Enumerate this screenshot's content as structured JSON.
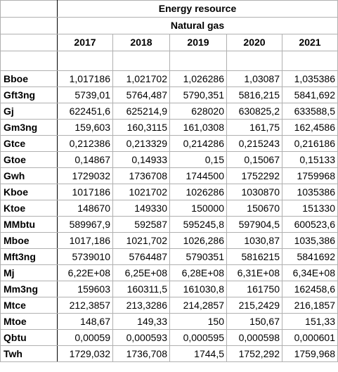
{
  "header": {
    "group_title": "Energy resource",
    "sub_title": "Natural gas",
    "years": [
      "2017",
      "2018",
      "2019",
      "2020",
      "2021"
    ]
  },
  "rows": [
    {
      "unit": "Bboe",
      "values": [
        "1,017186",
        "1,021702",
        "1,026286",
        "1,03087",
        "1,035386"
      ]
    },
    {
      "unit": "Gft3ng",
      "values": [
        "5739,01",
        "5764,487",
        "5790,351",
        "5816,215",
        "5841,692"
      ]
    },
    {
      "unit": "Gj",
      "values": [
        "622451,6",
        "625214,9",
        "628020",
        "630825,2",
        "633588,5"
      ]
    },
    {
      "unit": "Gm3ng",
      "values": [
        "159,603",
        "160,3115",
        "161,0308",
        "161,75",
        "162,4586"
      ]
    },
    {
      "unit": "Gtce",
      "values": [
        "0,212386",
        "0,213329",
        "0,214286",
        "0,215243",
        "0,216186"
      ]
    },
    {
      "unit": "Gtoe",
      "values": [
        "0,14867",
        "0,14933",
        "0,15",
        "0,15067",
        "0,15133"
      ]
    },
    {
      "unit": "Gwh",
      "values": [
        "1729032",
        "1736708",
        "1744500",
        "1752292",
        "1759968"
      ]
    },
    {
      "unit": "Kboe",
      "values": [
        "1017186",
        "1021702",
        "1026286",
        "1030870",
        "1035386"
      ]
    },
    {
      "unit": "Ktoe",
      "values": [
        "148670",
        "149330",
        "150000",
        "150670",
        "151330"
      ]
    },
    {
      "unit": "MMbtu",
      "values": [
        "589967,9",
        "592587",
        "595245,8",
        "597904,5",
        "600523,6"
      ]
    },
    {
      "unit": "Mboe",
      "values": [
        "1017,186",
        "1021,702",
        "1026,286",
        "1030,87",
        "1035,386"
      ]
    },
    {
      "unit": "Mft3ng",
      "values": [
        "5739010",
        "5764487",
        "5790351",
        "5816215",
        "5841692"
      ]
    },
    {
      "unit": "Mj",
      "values": [
        "6,22E+08",
        "6,25E+08",
        "6,28E+08",
        "6,31E+08",
        "6,34E+08"
      ]
    },
    {
      "unit": "Mm3ng",
      "values": [
        "159603",
        "160311,5",
        "161030,8",
        "161750",
        "162458,6"
      ]
    },
    {
      "unit": "Mtce",
      "values": [
        "212,3857",
        "213,3286",
        "214,2857",
        "215,2429",
        "216,1857"
      ]
    },
    {
      "unit": "Mtoe",
      "values": [
        "148,67",
        "149,33",
        "150",
        "150,67",
        "151,33"
      ]
    },
    {
      "unit": "Qbtu",
      "values": [
        "0,00059",
        "0,000593",
        "0,000595",
        "0,000598",
        "0,000601"
      ]
    },
    {
      "unit": "Twh",
      "values": [
        "1729,032",
        "1736,708",
        "1744,5",
        "1752,292",
        "1759,968"
      ]
    }
  ]
}
